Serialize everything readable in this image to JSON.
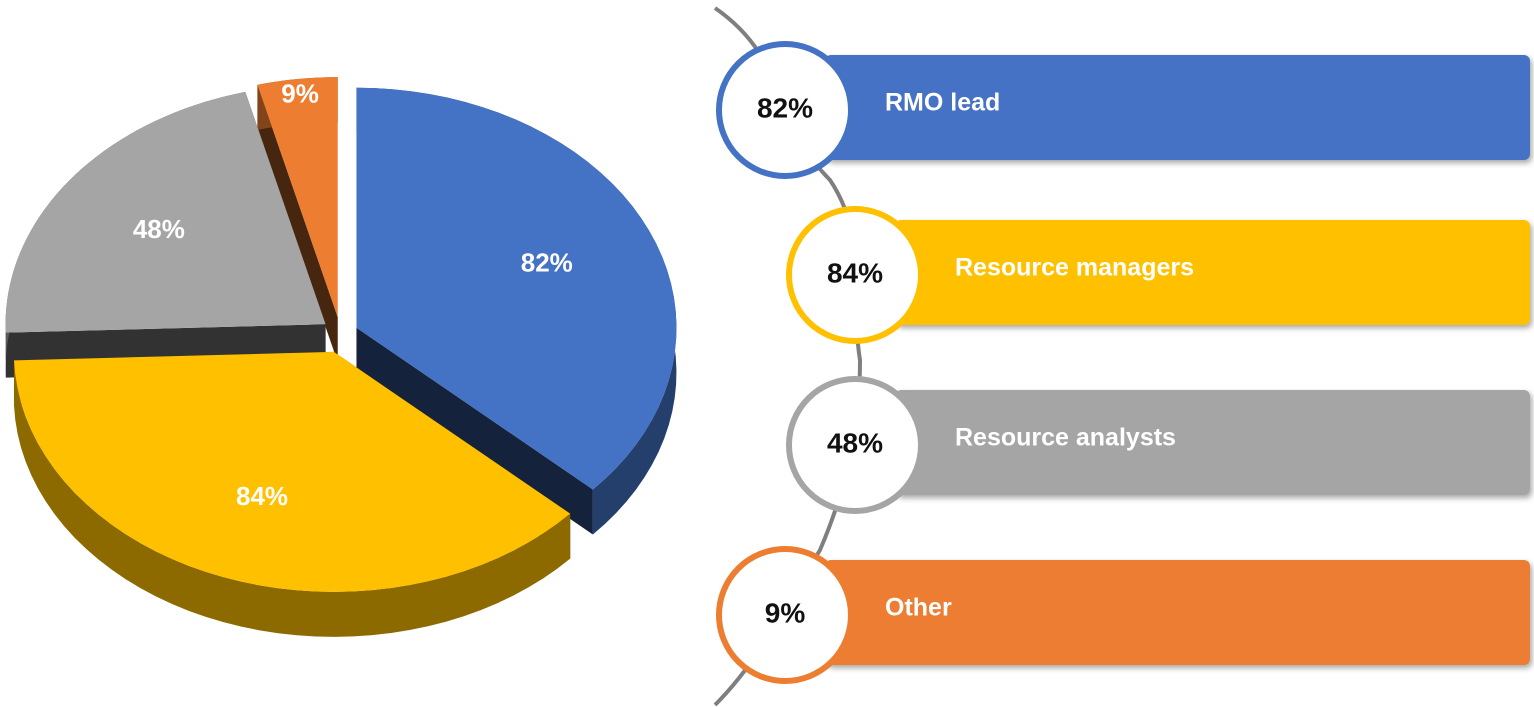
{
  "chart_data": {
    "type": "pie",
    "categories": [
      "RMO lead",
      "Resource managers",
      "Resource analysts",
      "Other"
    ],
    "values": [
      82,
      84,
      48,
      9
    ],
    "value_labels": [
      "82%",
      "84%",
      "48%",
      "9%"
    ],
    "colors": [
      "#4472c4",
      "#ffc000",
      "#a5a5a5",
      "#ed7d31"
    ]
  }
}
